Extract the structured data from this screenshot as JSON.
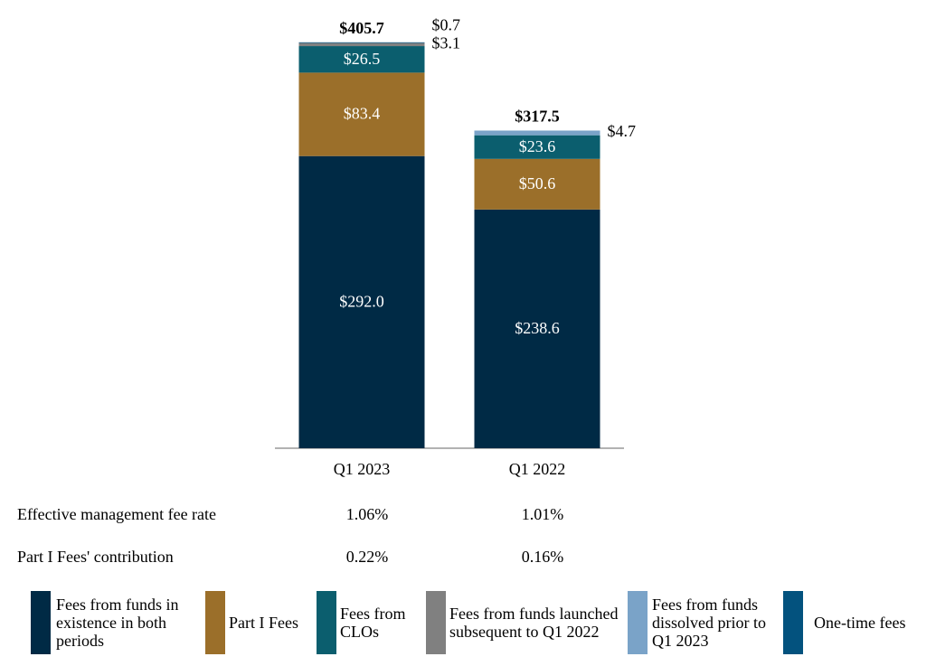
{
  "chart_data": {
    "type": "stacked-bar",
    "categories": [
      "Q1 2023",
      "Q1 2022"
    ],
    "series": [
      {
        "name": "Fees from funds in existence in both periods",
        "color": "#002a45",
        "values": [
          292.0,
          238.6
        ],
        "value_labels": [
          "$292.0",
          "$238.6"
        ]
      },
      {
        "name": "Part I Fees",
        "color": "#9b6f2a",
        "values": [
          83.4,
          50.6
        ],
        "value_labels": [
          "$83.4",
          "$50.6"
        ]
      },
      {
        "name": "Fees from CLOs",
        "color": "#0b5e6e",
        "values": [
          26.5,
          23.6
        ],
        "value_labels": [
          "$26.5",
          "$23.6"
        ]
      },
      {
        "name": "Fees from funds launched subsequent to Q1 2022",
        "color": "#808080",
        "values": [
          3.1,
          null
        ],
        "value_labels": [
          "$3.1",
          null
        ]
      },
      {
        "name": "Fees from funds dissolved prior to Q1 2023",
        "color": "#7aa3c8",
        "values": [
          null,
          4.7
        ],
        "value_labels": [
          null,
          "$4.7"
        ]
      },
      {
        "name": "One-time fees",
        "color": "#03527e",
        "values": [
          0.7,
          null
        ],
        "value_labels": [
          "$0.7",
          null
        ]
      }
    ],
    "totals": [
      405.7,
      317.5
    ],
    "total_labels": [
      "$405.7",
      "$317.5"
    ],
    "ylim": [
      0,
      420
    ]
  },
  "table": {
    "rows": [
      {
        "label": "Effective management fee rate",
        "values": [
          "1.06%",
          "1.01%"
        ]
      },
      {
        "label": "Part I Fees' contribution",
        "values": [
          "0.22%",
          "0.16%"
        ]
      }
    ]
  }
}
